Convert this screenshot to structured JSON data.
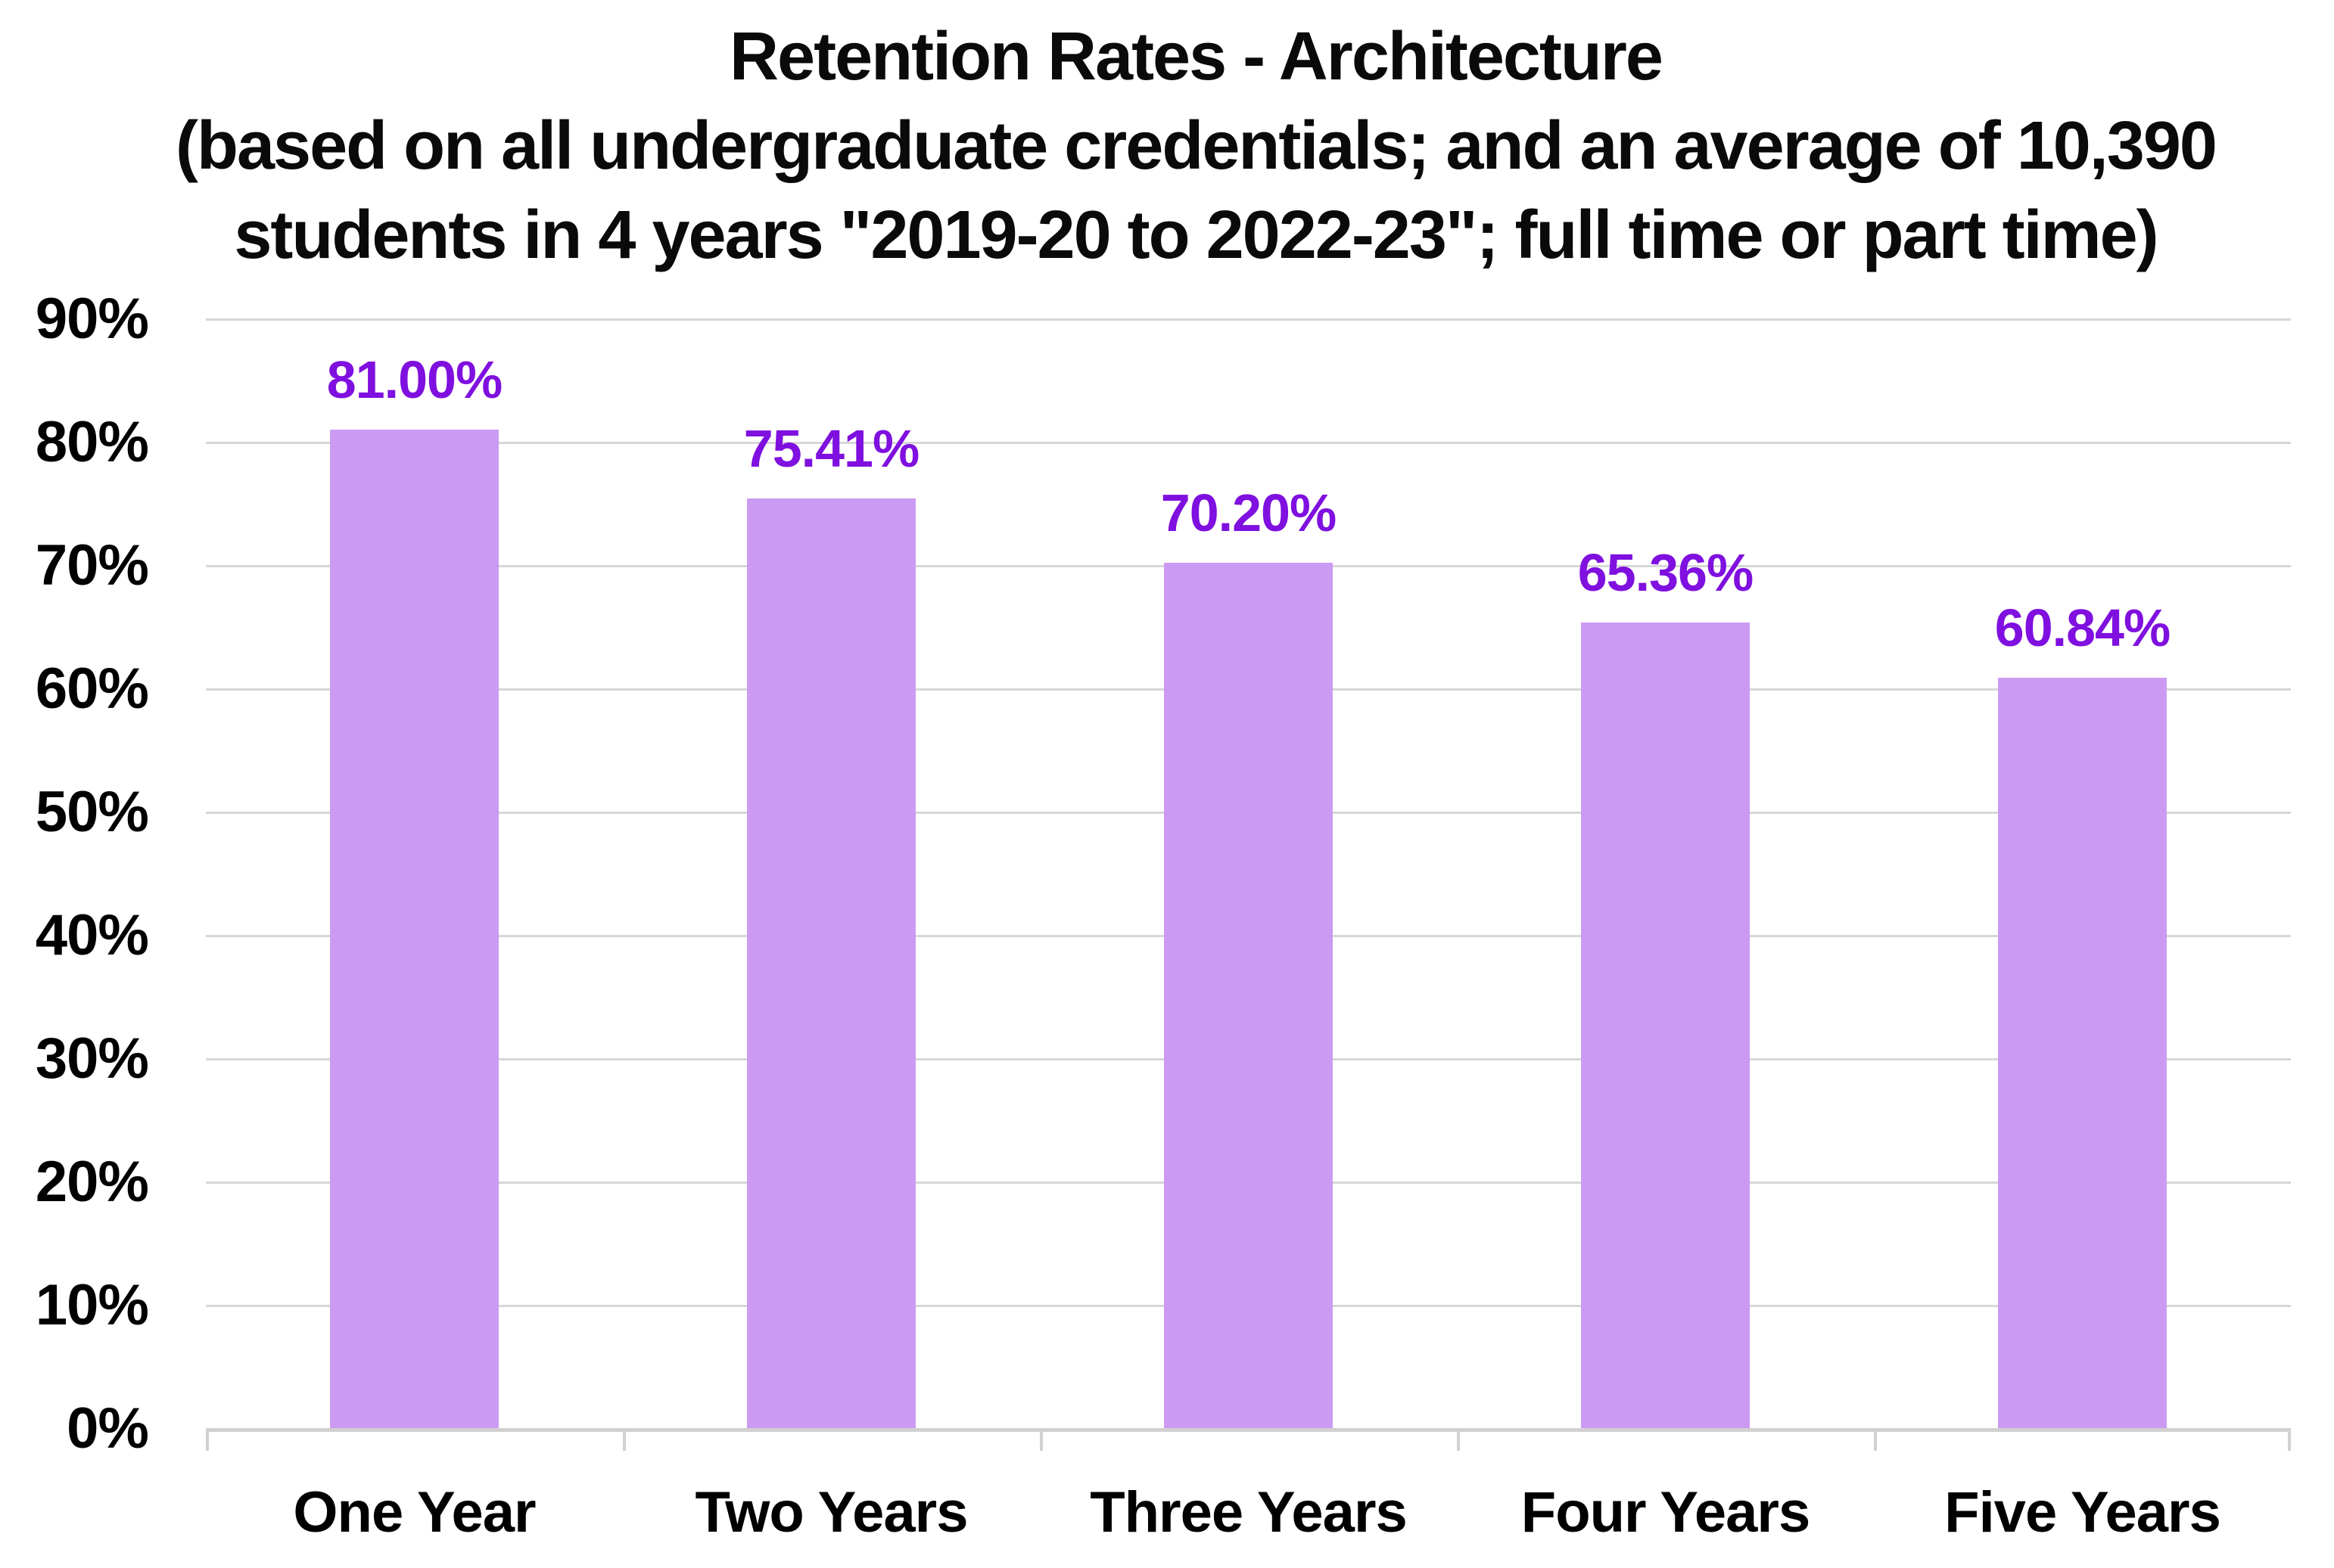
{
  "title": {
    "line1": "Retention Rates - Architecture",
    "line2": "(based on all undergraduate credentials; and an average of 10,390",
    "line3": "students in 4 years \"2019-20 to 2022-23\"; full time or part time)"
  },
  "chart_data": {
    "type": "bar",
    "title": "Retention Rates - Architecture (based on all undergraduate credentials; and an average of 10,390 students in 4 years \"2019-20 to 2022-23\"; full time or part time)",
    "categories": [
      "One Year",
      "Two Years",
      "Three Years",
      "Four Years",
      "Five Years"
    ],
    "values": [
      81.0,
      75.41,
      70.2,
      65.36,
      60.84
    ],
    "value_labels": [
      "81.00%",
      "75.41%",
      "70.20%",
      "65.36%",
      "60.84%"
    ],
    "xlabel": "",
    "ylabel": "",
    "ylim": [
      0,
      90
    ],
    "ytick_step": 10,
    "ytick_values": [
      0,
      10,
      20,
      30,
      40,
      50,
      60,
      70,
      80,
      90
    ],
    "ytick_labels": [
      "0%",
      "10%",
      "20%",
      "30%",
      "40%",
      "50%",
      "60%",
      "70%",
      "80%",
      "90%"
    ],
    "grid": true,
    "legend": false,
    "colors": {
      "bar_fill": "#cb9bf3",
      "value_label": "#7f10df",
      "gridline": "#d7d7d7",
      "axis_line": "#d2d0d0",
      "text": "#0a0a0a"
    }
  }
}
